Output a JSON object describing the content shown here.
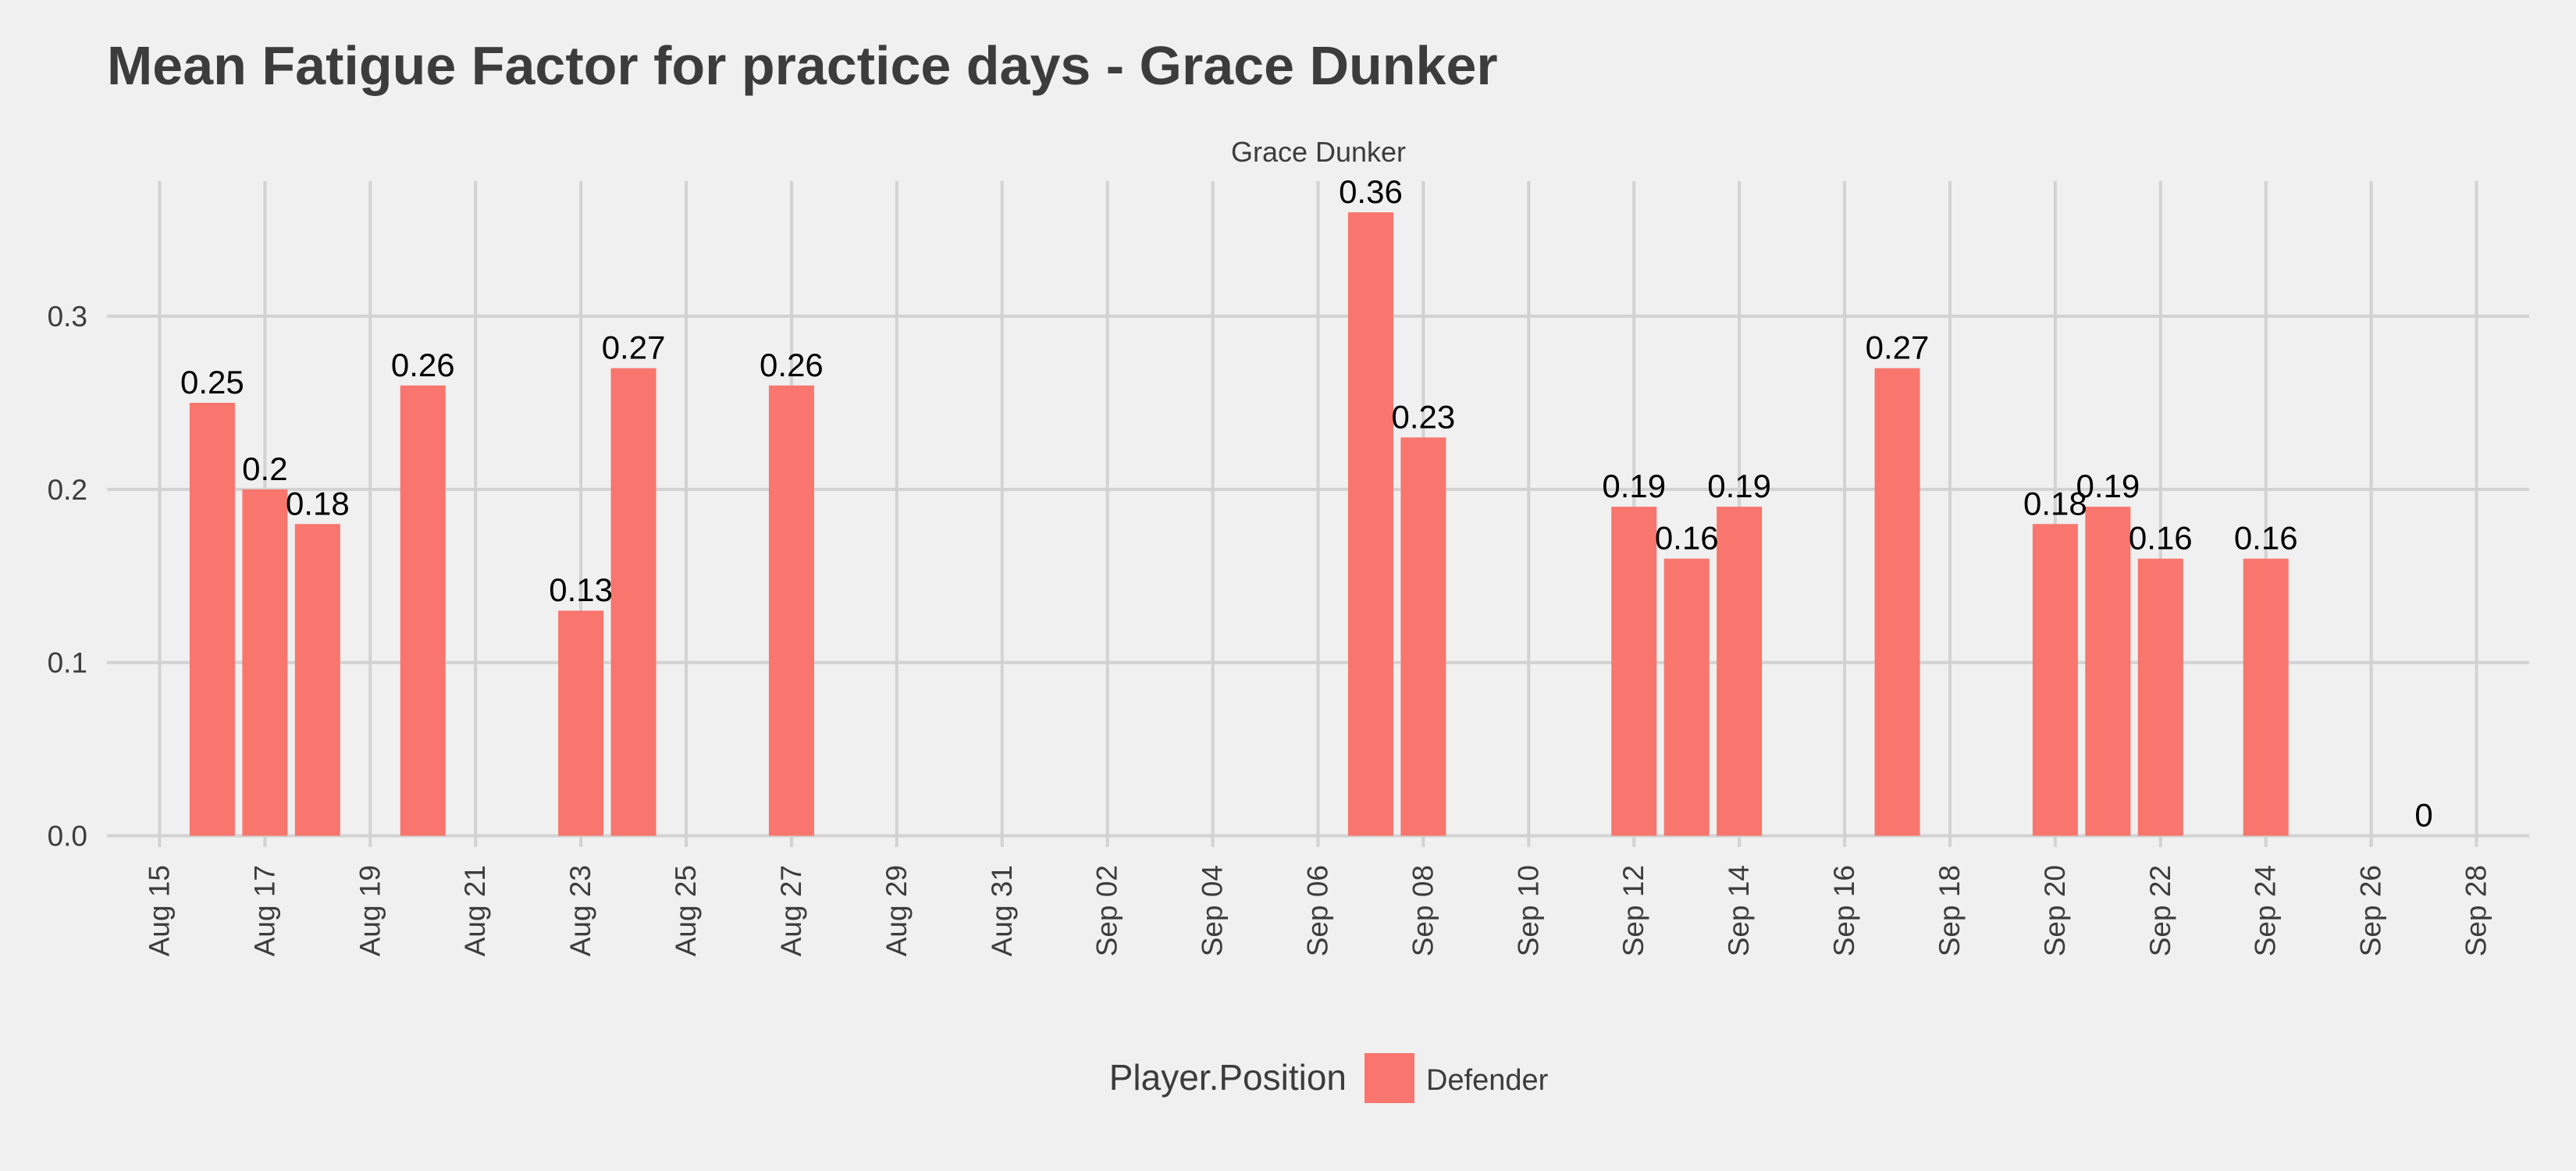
{
  "chart_data": {
    "type": "bar",
    "title": "Mean Fatigue Factor for practice days -  Grace Dunker",
    "facet_label": "Grace Dunker",
    "xlabel": "",
    "ylabel": "",
    "x_axis": {
      "type": "date",
      "range": [
        "2019-08-14",
        "2019-09-29"
      ],
      "ticks": [
        {
          "date": "2019-08-15",
          "label": "Aug 15"
        },
        {
          "date": "2019-08-17",
          "label": "Aug 17"
        },
        {
          "date": "2019-08-19",
          "label": "Aug 19"
        },
        {
          "date": "2019-08-21",
          "label": "Aug 21"
        },
        {
          "date": "2019-08-23",
          "label": "Aug 23"
        },
        {
          "date": "2019-08-25",
          "label": "Aug 25"
        },
        {
          "date": "2019-08-27",
          "label": "Aug 27"
        },
        {
          "date": "2019-08-29",
          "label": "Aug 29"
        },
        {
          "date": "2019-08-31",
          "label": "Aug 31"
        },
        {
          "date": "2019-09-02",
          "label": "Sep 02"
        },
        {
          "date": "2019-09-04",
          "label": "Sep 04"
        },
        {
          "date": "2019-09-06",
          "label": "Sep 06"
        },
        {
          "date": "2019-09-08",
          "label": "Sep 08"
        },
        {
          "date": "2019-09-10",
          "label": "Sep 10"
        },
        {
          "date": "2019-09-12",
          "label": "Sep 12"
        },
        {
          "date": "2019-09-14",
          "label": "Sep 14"
        },
        {
          "date": "2019-09-16",
          "label": "Sep 16"
        },
        {
          "date": "2019-09-18",
          "label": "Sep 18"
        },
        {
          "date": "2019-09-20",
          "label": "Sep 20"
        },
        {
          "date": "2019-09-22",
          "label": "Sep 22"
        },
        {
          "date": "2019-09-24",
          "label": "Sep 24"
        },
        {
          "date": "2019-09-26",
          "label": "Sep 26"
        },
        {
          "date": "2019-09-28",
          "label": "Sep 28"
        }
      ]
    },
    "y_axis": {
      "range": [
        -0.0065,
        0.378
      ],
      "ticks": [
        {
          "value": 0.0,
          "label": "0.0"
        },
        {
          "value": 0.1,
          "label": "0.1"
        },
        {
          "value": 0.2,
          "label": "0.2"
        },
        {
          "value": 0.3,
          "label": "0.3"
        }
      ]
    },
    "grid": true,
    "legend": {
      "position": "bottom",
      "title": "Player.Position",
      "entries": [
        {
          "label": "Defender",
          "color": "#F8766D"
        }
      ]
    },
    "series": [
      {
        "name": "Defender",
        "color": "#F8766D",
        "points": [
          {
            "date": "2019-08-16",
            "value": 0.25,
            "label": "0.25"
          },
          {
            "date": "2019-08-17",
            "value": 0.2,
            "label": "0.2"
          },
          {
            "date": "2019-08-18",
            "value": 0.18,
            "label": "0.18"
          },
          {
            "date": "2019-08-20",
            "value": 0.26,
            "label": "0.26"
          },
          {
            "date": "2019-08-23",
            "value": 0.13,
            "label": "0.13"
          },
          {
            "date": "2019-08-24",
            "value": 0.27,
            "label": "0.27"
          },
          {
            "date": "2019-08-27",
            "value": 0.26,
            "label": "0.26"
          },
          {
            "date": "2019-09-07",
            "value": 0.36,
            "label": "0.36"
          },
          {
            "date": "2019-09-08",
            "value": 0.23,
            "label": "0.23"
          },
          {
            "date": "2019-09-12",
            "value": 0.19,
            "label": "0.19"
          },
          {
            "date": "2019-09-13",
            "value": 0.16,
            "label": "0.16"
          },
          {
            "date": "2019-09-14",
            "value": 0.19,
            "label": "0.19"
          },
          {
            "date": "2019-09-17",
            "value": 0.27,
            "label": "0.27"
          },
          {
            "date": "2019-09-20",
            "value": 0.18,
            "label": "0.18"
          },
          {
            "date": "2019-09-21",
            "value": 0.19,
            "label": "0.19"
          },
          {
            "date": "2019-09-22",
            "value": 0.16,
            "label": "0.16"
          },
          {
            "date": "2019-09-24",
            "value": 0.16,
            "label": "0.16"
          },
          {
            "date": "2019-09-27",
            "value": 0.0,
            "label": "0"
          }
        ]
      }
    ]
  },
  "colors": {
    "background": "#F0F0F0",
    "grid": "#D2D2D2",
    "title_text": "#3C3C3C",
    "axis_text": "#3C3C3C",
    "label_text": "#000000",
    "bar": "#F8766D"
  }
}
